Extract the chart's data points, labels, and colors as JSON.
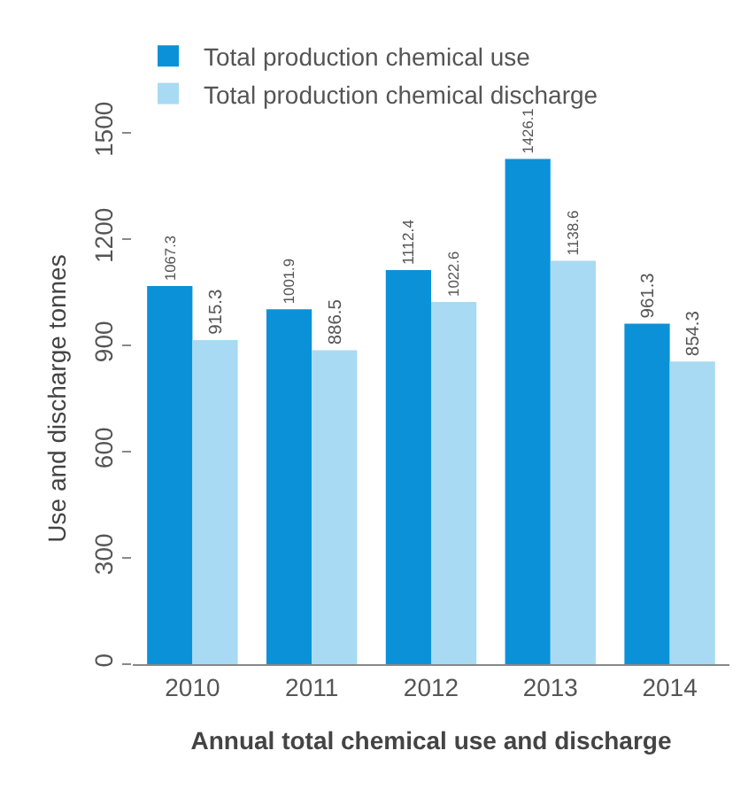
{
  "chart_data": {
    "type": "bar",
    "xlabel": "Annual total chemical use and discharge",
    "ylabel": "Use and discharge tonnes",
    "categories": [
      "2010",
      "2011",
      "2012",
      "2013",
      "2014"
    ],
    "series": [
      {
        "name": "Total production chemical use",
        "color": "#0a91d8",
        "values": [
          1067.3,
          1001.9,
          1112.4,
          1426.1,
          961.3
        ]
      },
      {
        "name": "Total production chemical discharge",
        "color": "#a9daf3",
        "values": [
          915.3,
          886.5,
          1022.6,
          1138.6,
          854.3
        ]
      }
    ],
    "ylim": [
      0,
      1500
    ],
    "yticks": [
      0,
      300,
      600,
      900,
      1200,
      1500
    ],
    "data_labels": true,
    "legend": "top",
    "grid": false
  }
}
